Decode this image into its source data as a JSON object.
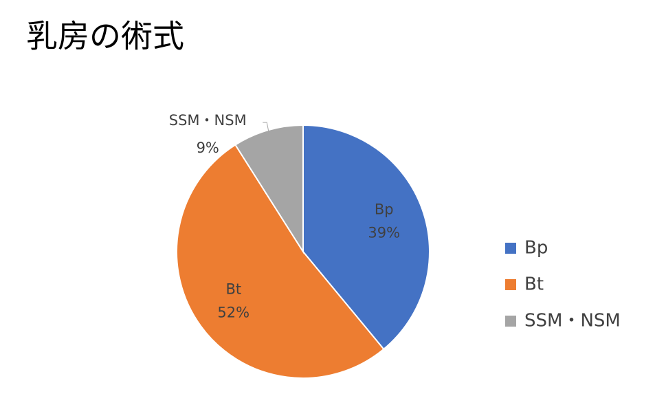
{
  "chart_data": {
    "type": "pie",
    "title": "乳房の術式",
    "categories": [
      "Bp",
      "Bt",
      "SSM・NSM"
    ],
    "values": [
      39,
      52,
      9
    ],
    "value_labels": [
      "39%",
      "52%",
      "9%"
    ],
    "colors": [
      "#4472c4",
      "#ed7d31",
      "#a5a5a5"
    ],
    "legend": "right"
  }
}
